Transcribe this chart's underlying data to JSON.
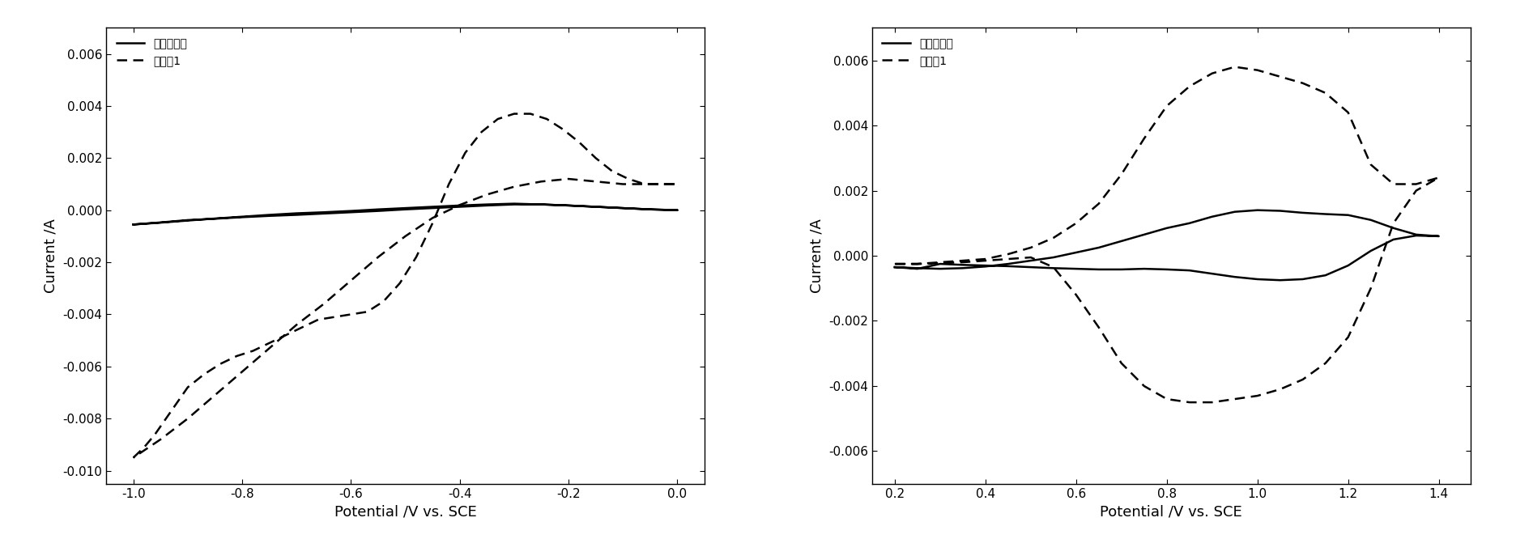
{
  "plot1": {
    "xlabel": "Potential /V vs. SCE",
    "ylabel": "Current /A",
    "xlim": [
      -1.05,
      0.05
    ],
    "ylim": [
      -0.0105,
      0.007
    ],
    "xticks": [
      -1.0,
      -0.8,
      -0.6,
      -0.4,
      -0.2,
      0.0
    ],
    "yticks": [
      -0.01,
      -0.008,
      -0.006,
      -0.004,
      -0.002,
      0.0,
      0.002,
      0.004,
      0.006
    ],
    "legend_labels": [
      "未处理炭砌",
      "实施例1"
    ],
    "solid_x": [
      -1.0,
      -0.95,
      -0.9,
      -0.85,
      -0.8,
      -0.75,
      -0.7,
      -0.65,
      -0.6,
      -0.55,
      -0.5,
      -0.45,
      -0.4,
      -0.35,
      -0.3,
      -0.25,
      -0.2,
      -0.15,
      -0.1,
      -0.05,
      0.0,
      0.0,
      -0.05,
      -0.1,
      -0.15,
      -0.2,
      -0.25,
      -0.3,
      -0.35,
      -0.4,
      -0.45,
      -0.5,
      -0.55,
      -0.6,
      -0.65,
      -0.7,
      -0.75,
      -0.8,
      -0.85,
      -0.9,
      -0.95,
      -1.0
    ],
    "solid_y": [
      -0.00055,
      -0.00048,
      -0.0004,
      -0.00032,
      -0.00025,
      -0.00018,
      -0.00012,
      -8e-05,
      -3e-05,
      3e-05,
      8e-05,
      0.00013,
      0.00018,
      0.00022,
      0.00025,
      0.00022,
      0.00018,
      0.00013,
      8e-05,
      3e-05,
      0.0,
      0.0,
      3e-05,
      8e-05,
      0.00013,
      0.00018,
      0.00022,
      0.00022,
      0.00018,
      0.00013,
      8e-05,
      3e-05,
      -3e-05,
      -8e-05,
      -0.00013,
      -0.00018,
      -0.00022,
      -0.00027,
      -0.00033,
      -0.00038,
      -0.00047,
      -0.00055
    ],
    "dashed_x": [
      -1.0,
      -0.98,
      -0.96,
      -0.94,
      -0.92,
      -0.9,
      -0.87,
      -0.84,
      -0.81,
      -0.78,
      -0.75,
      -0.72,
      -0.69,
      -0.66,
      -0.63,
      -0.6,
      -0.57,
      -0.54,
      -0.51,
      -0.48,
      -0.45,
      -0.42,
      -0.39,
      -0.36,
      -0.33,
      -0.3,
      -0.27,
      -0.24,
      -0.21,
      -0.18,
      -0.15,
      -0.12,
      -0.09,
      -0.06,
      -0.03,
      0.0,
      0.0,
      -0.05,
      -0.1,
      -0.15,
      -0.2,
      -0.25,
      -0.3,
      -0.35,
      -0.4,
      -0.45,
      -0.5,
      -0.55,
      -0.6,
      -0.65,
      -0.7,
      -0.75,
      -0.8,
      -0.85,
      -0.9,
      -0.95,
      -1.0
    ],
    "dashed_y": [
      -0.0095,
      -0.0091,
      -0.0086,
      -0.008,
      -0.0074,
      -0.0068,
      -0.0063,
      -0.0059,
      -0.0056,
      -0.0054,
      -0.0051,
      -0.0048,
      -0.0045,
      -0.0042,
      -0.0041,
      -0.004,
      -0.0039,
      -0.0035,
      -0.0028,
      -0.0018,
      -0.0005,
      0.001,
      0.0022,
      0.003,
      0.0035,
      0.0037,
      0.0037,
      0.0035,
      0.0031,
      0.0026,
      0.002,
      0.0015,
      0.0012,
      0.001,
      0.001,
      0.001,
      0.001,
      0.001,
      0.001,
      0.0011,
      0.0012,
      0.0011,
      0.0009,
      0.0006,
      0.0002,
      -0.0003,
      -0.001,
      -0.0018,
      -0.0027,
      -0.0036,
      -0.0044,
      -0.0053,
      -0.0062,
      -0.0071,
      -0.008,
      -0.0088,
      -0.0095
    ]
  },
  "plot2": {
    "xlabel": "Potential /V vs. SCE",
    "ylabel": "Current /A",
    "xlim": [
      0.15,
      1.47
    ],
    "ylim": [
      -0.007,
      0.007
    ],
    "xticks": [
      0.2,
      0.4,
      0.6,
      0.8,
      1.0,
      1.2,
      1.4
    ],
    "yticks": [
      -0.006,
      -0.004,
      -0.002,
      0.0,
      0.002,
      0.004,
      0.006
    ],
    "legend_labels": [
      "未处理炭砌",
      "实施例1"
    ],
    "solid_x": [
      0.2,
      0.25,
      0.3,
      0.35,
      0.4,
      0.45,
      0.5,
      0.55,
      0.6,
      0.65,
      0.7,
      0.75,
      0.8,
      0.85,
      0.9,
      0.95,
      1.0,
      1.05,
      1.1,
      1.15,
      1.2,
      1.25,
      1.3,
      1.35,
      1.4,
      1.4,
      1.35,
      1.3,
      1.25,
      1.2,
      1.15,
      1.1,
      1.05,
      1.0,
      0.95,
      0.9,
      0.85,
      0.8,
      0.75,
      0.7,
      0.65,
      0.6,
      0.55,
      0.5,
      0.45,
      0.4,
      0.35,
      0.3,
      0.25,
      0.2
    ],
    "solid_y": [
      -0.00035,
      -0.00038,
      -0.0004,
      -0.00038,
      -0.00033,
      -0.00025,
      -0.00015,
      -5e-05,
      0.0001,
      0.00025,
      0.00045,
      0.00065,
      0.00085,
      0.001,
      0.0012,
      0.00135,
      0.0014,
      0.00138,
      0.00132,
      0.00128,
      0.00125,
      0.0011,
      0.00085,
      0.00065,
      0.0006,
      0.0006,
      0.00062,
      0.0005,
      0.00015,
      -0.0003,
      -0.0006,
      -0.00072,
      -0.00075,
      -0.00072,
      -0.00065,
      -0.00055,
      -0.00045,
      -0.00042,
      -0.0004,
      -0.00042,
      -0.00042,
      -0.0004,
      -0.00038,
      -0.00035,
      -0.00032,
      -0.0003,
      -0.00028,
      -0.00025,
      -0.0004,
      -0.00035
    ],
    "dashed_x": [
      0.2,
      0.25,
      0.3,
      0.35,
      0.4,
      0.45,
      0.5,
      0.55,
      0.6,
      0.65,
      0.7,
      0.75,
      0.8,
      0.85,
      0.9,
      0.95,
      1.0,
      1.05,
      1.1,
      1.15,
      1.2,
      1.25,
      1.3,
      1.35,
      1.4,
      1.4,
      1.35,
      1.3,
      1.25,
      1.2,
      1.15,
      1.1,
      1.05,
      1.0,
      0.95,
      0.9,
      0.85,
      0.8,
      0.75,
      0.7,
      0.65,
      0.6,
      0.55,
      0.5,
      0.45,
      0.4,
      0.35,
      0.3,
      0.25,
      0.2
    ],
    "dashed_y": [
      -0.00025,
      -0.00025,
      -0.0002,
      -0.00015,
      -0.0001,
      5e-05,
      0.00025,
      0.00055,
      0.001,
      0.0016,
      0.0025,
      0.0036,
      0.0046,
      0.0052,
      0.0056,
      0.0058,
      0.0057,
      0.0055,
      0.0053,
      0.005,
      0.0044,
      0.0028,
      0.0022,
      0.0022,
      0.0024,
      0.0024,
      0.002,
      0.001,
      -0.001,
      -0.0025,
      -0.0033,
      -0.0038,
      -0.0041,
      -0.0043,
      -0.0044,
      -0.0045,
      -0.0045,
      -0.0044,
      -0.004,
      -0.0033,
      -0.0022,
      -0.0012,
      -0.00035,
      -5e-05,
      -0.0001,
      -0.00015,
      -0.0002,
      -0.00023,
      -0.00025,
      -0.00025
    ]
  },
  "line_color": "#000000",
  "background_color": "#ffffff",
  "font_size": 12,
  "label_font_size": 13,
  "tick_font_size": 11
}
